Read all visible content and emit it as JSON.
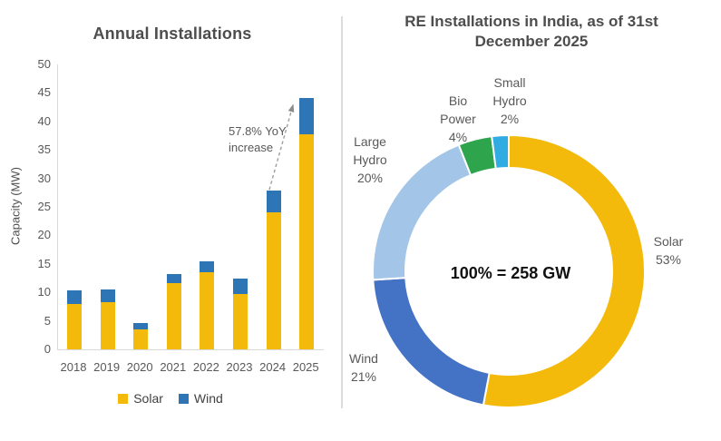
{
  "chart_data": [
    {
      "type": "bar",
      "stacked": true,
      "title": "Annual Installations",
      "xlabel": "",
      "ylabel": "Capacity (MW)",
      "ylim": [
        0,
        50
      ],
      "y_tick_step": 5,
      "grid": false,
      "legend_position": "bottom",
      "categories": [
        "2018",
        "2019",
        "2020",
        "2021",
        "2022",
        "2023",
        "2024",
        "2025"
      ],
      "series": [
        {
          "name": "Solar",
          "color": "#F3B90B",
          "values": [
            7.9,
            8.3,
            3.5,
            11.6,
            13.6,
            9.7,
            24.0,
            37.8
          ]
        },
        {
          "name": "Wind",
          "color": "#2E75B6",
          "values": [
            2.4,
            2.2,
            1.2,
            1.6,
            1.9,
            2.8,
            3.8,
            6.3
          ]
        }
      ],
      "annotation": {
        "line1": "57.8% YoY",
        "line2": "increase",
        "text": "57.8% YoY increase"
      }
    },
    {
      "type": "pie",
      "subtype": "donut",
      "title": "RE Installations in India, as of 31st December 2025",
      "title_lines": [
        "RE Installations in India, as of 31st",
        "December 2025"
      ],
      "center_label": "100% = 258 GW",
      "start_angle_deg": 0,
      "direction": "clockwise",
      "segments": [
        {
          "label": "Solar",
          "pct": "53%",
          "value": 53,
          "color": "#F3B90B"
        },
        {
          "label": "Wind",
          "pct": "21%",
          "value": 21,
          "color": "#4472C4"
        },
        {
          "label": "Large Hydro",
          "pct": "20%",
          "value": 20,
          "color": "#A3C6E8"
        },
        {
          "label": "Bio Power",
          "pct": "4%",
          "value": 4,
          "color": "#2EA44D"
        },
        {
          "label": "Small Hydro",
          "pct": "2%",
          "value": 2,
          "color": "#31ACE3"
        }
      ]
    }
  ]
}
